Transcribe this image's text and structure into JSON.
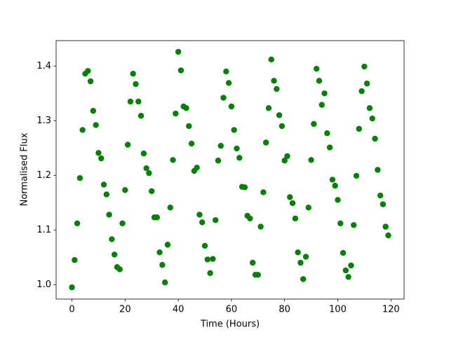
{
  "chart_data": {
    "type": "scatter",
    "xlabel": "Time (Hours)",
    "ylabel": "Normalised Flux",
    "color": "#008000",
    "grid": false,
    "x": [
      0,
      1,
      2,
      3,
      4,
      5,
      6,
      7,
      8,
      9,
      10,
      11,
      12,
      13,
      14,
      15,
      16,
      17,
      18,
      19,
      20,
      21,
      22,
      23,
      24,
      25,
      26,
      27,
      28,
      29,
      30,
      31,
      32,
      33,
      34,
      35,
      36,
      37,
      38,
      39,
      40,
      41,
      42,
      43,
      44,
      45,
      46,
      47,
      48,
      49,
      50,
      51,
      52,
      53,
      54,
      55,
      56,
      57,
      58,
      59,
      60,
      61,
      62,
      63,
      64,
      65,
      66,
      67,
      68,
      69,
      70,
      71,
      72,
      73,
      74,
      75,
      76,
      77,
      78,
      79,
      80,
      81,
      82,
      83,
      84,
      85,
      86,
      87,
      88,
      89,
      90,
      91,
      92,
      93,
      94,
      95,
      96,
      97,
      98,
      99,
      100,
      101,
      102,
      103,
      104,
      105,
      106,
      107,
      108,
      109,
      110,
      111,
      112,
      113,
      114,
      115,
      116,
      117,
      118,
      119
    ],
    "values": [
      0.995,
      1.045,
      1.112,
      1.195,
      1.283,
      1.386,
      1.391,
      1.372,
      1.318,
      1.292,
      1.241,
      1.231,
      1.183,
      1.165,
      1.128,
      1.083,
      1.055,
      1.032,
      1.028,
      1.112,
      1.173,
      1.256,
      1.335,
      1.386,
      1.367,
      1.335,
      1.309,
      1.24,
      1.213,
      1.204,
      1.171,
      1.123,
      1.123,
      1.059,
      1.036,
      1.004,
      1.073,
      1.141,
      1.228,
      1.313,
      1.426,
      1.392,
      1.326,
      1.323,
      1.29,
      1.258,
      1.208,
      1.214,
      1.128,
      1.114,
      1.071,
      1.046,
      1.021,
      1.047,
      1.118,
      1.227,
      1.254,
      1.342,
      1.39,
      1.369,
      1.326,
      1.283,
      1.249,
      1.232,
      1.179,
      1.178,
      1.126,
      1.121,
      1.04,
      1.018,
      1.018,
      1.106,
      1.169,
      1.26,
      1.323,
      1.412,
      1.373,
      1.358,
      1.31,
      1.29,
      1.227,
      1.235,
      1.16,
      1.149,
      1.121,
      1.059,
      1.04,
      1.01,
      1.051,
      1.141,
      1.228,
      1.294,
      1.395,
      1.373,
      1.329,
      1.35,
      1.277,
      1.251,
      1.192,
      1.181,
      1.155,
      1.112,
      1.058,
      1.026,
      1.014,
      1.035,
      1.109,
      1.199,
      1.285,
      1.354,
      1.399,
      1.368,
      1.323,
      1.304,
      1.267,
      1.21,
      1.163,
      1.147,
      1.106,
      1.09
    ],
    "xlim": [
      -5.95,
      124.95
    ],
    "ylim": [
      0.9735,
      1.4465
    ],
    "xticks": [
      0,
      20,
      40,
      60,
      80,
      100,
      120
    ],
    "yticks": [
      {
        "value": 1,
        "label": "1.0"
      },
      1.1,
      1.2,
      1.3,
      1.4
    ]
  }
}
